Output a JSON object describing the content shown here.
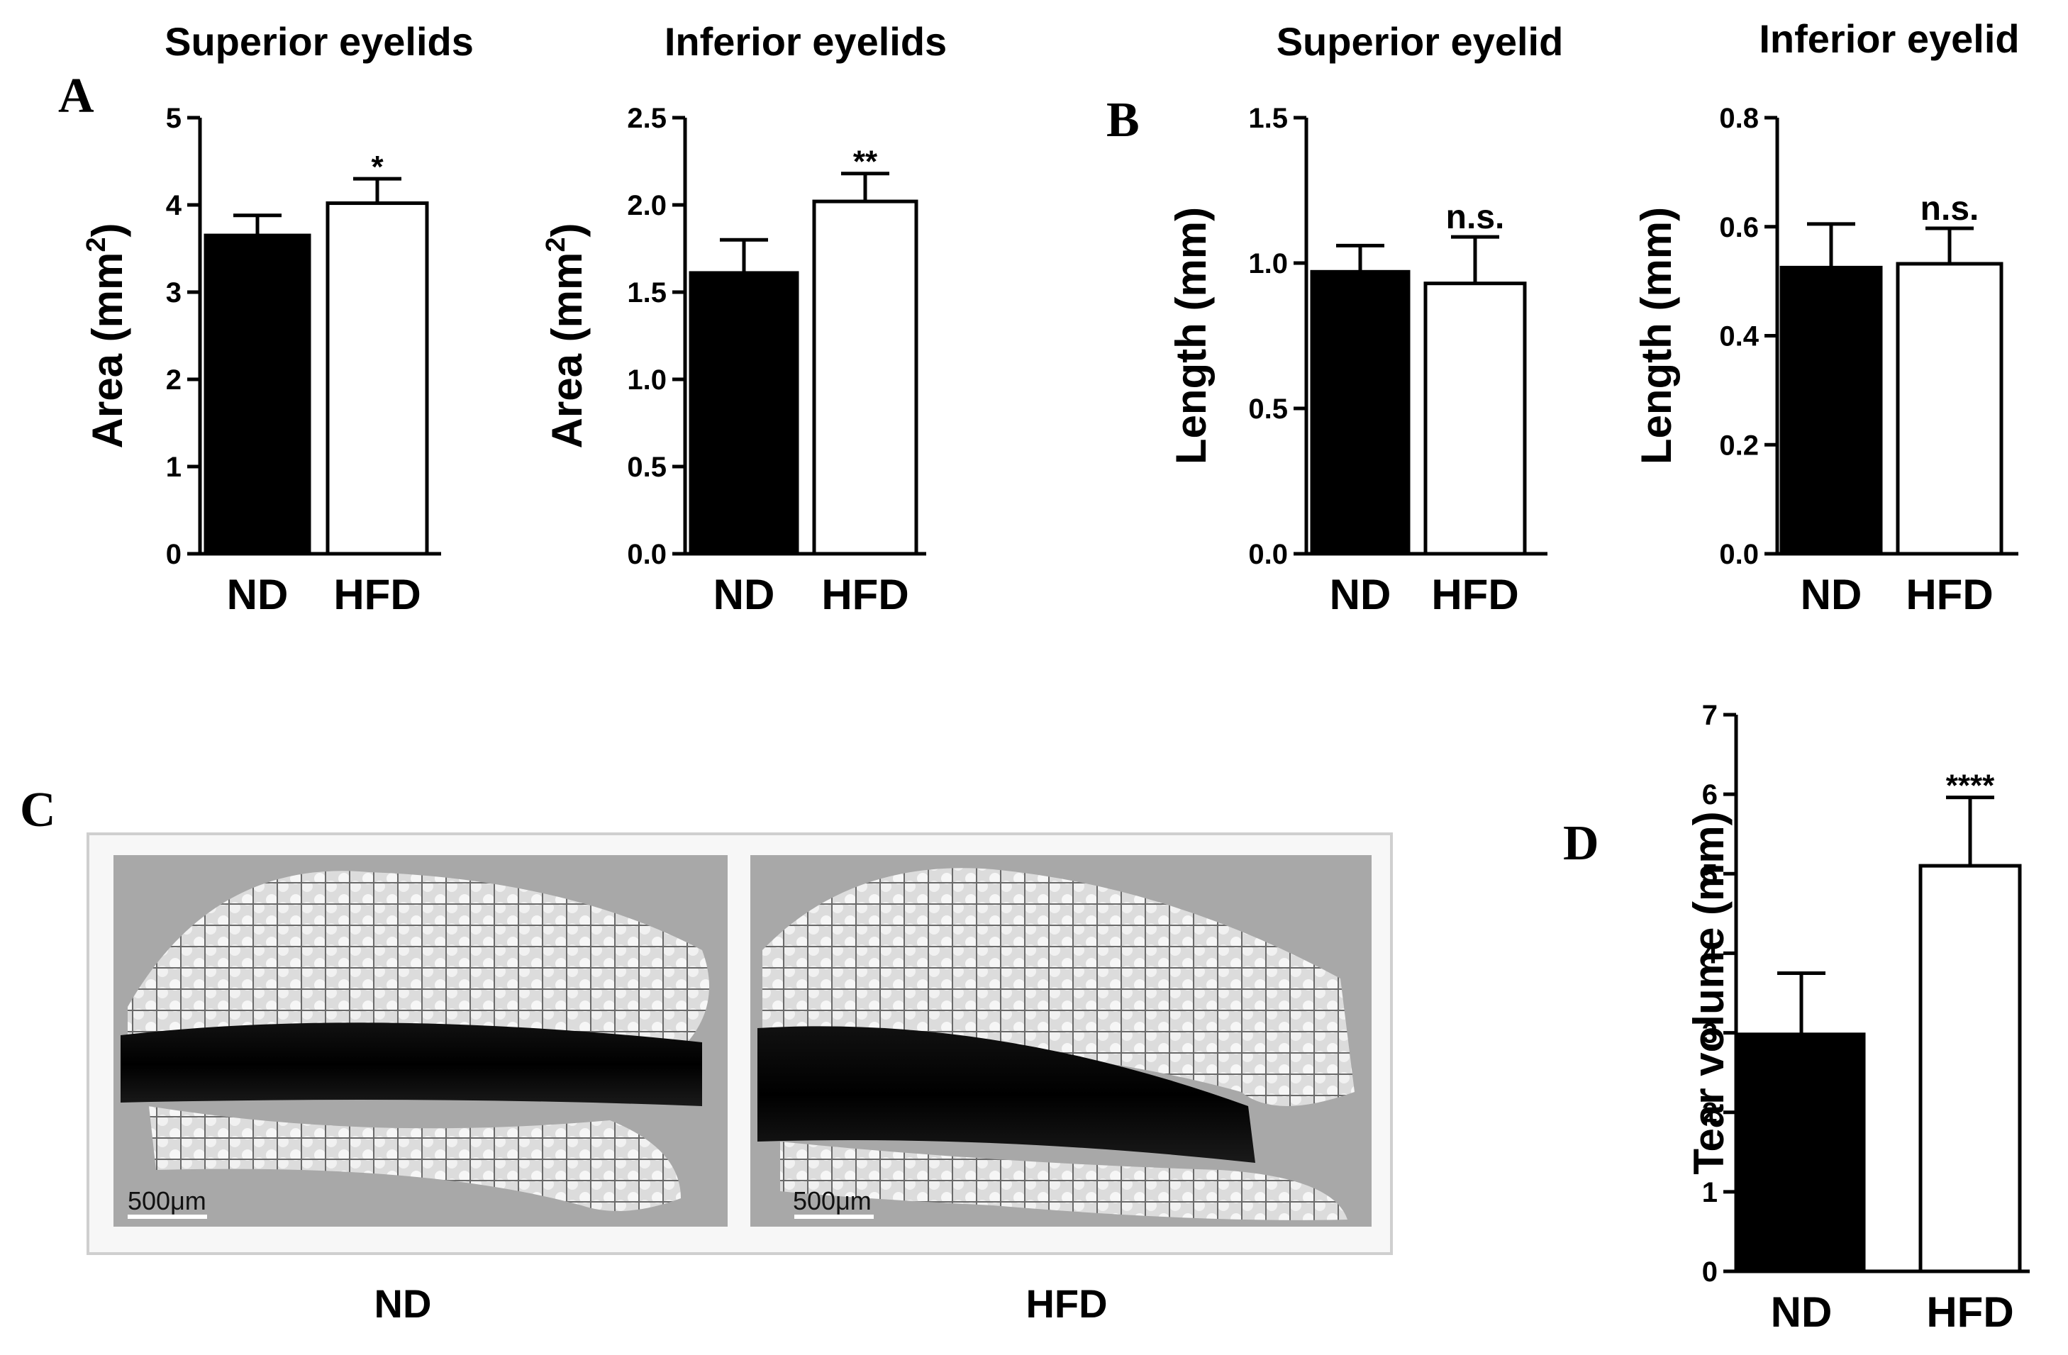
{
  "panels": {
    "A": "A",
    "B": "B",
    "C": "C",
    "D": "D"
  },
  "colors": {
    "nd_fill": "#000000",
    "hfd_fill": "#ffffff",
    "axis": "#000000",
    "frame": "#d4d4d4"
  },
  "images": {
    "labels": [
      "ND",
      "HFD"
    ],
    "scale_bar": "500μm",
    "description_icons": [
      "meibomian-gland-nd-image",
      "meibomian-gland-hfd-image"
    ]
  },
  "chart_data": [
    {
      "type": "bar",
      "panel": "A",
      "title": "Superior eyelids",
      "ylabel": "Area (mm2)",
      "ylim": [
        0,
        5
      ],
      "yticks": [
        "0",
        "1",
        "2",
        "3",
        "4",
        "5"
      ],
      "categories": [
        "ND",
        "HFD"
      ],
      "values": [
        3.65,
        4.02
      ],
      "errors": [
        0.23,
        0.28
      ],
      "significance": [
        "",
        "*"
      ]
    },
    {
      "type": "bar",
      "panel": "A",
      "title": "Inferior eyelids",
      "ylabel": "Area (mm2)",
      "ylim": [
        0,
        2.5
      ],
      "yticks": [
        "0.0",
        "0.5",
        "1.0",
        "1.5",
        "2.0",
        "2.5"
      ],
      "categories": [
        "ND",
        "HFD"
      ],
      "values": [
        1.61,
        2.02
      ],
      "errors": [
        0.19,
        0.16
      ],
      "significance": [
        "",
        "**"
      ]
    },
    {
      "type": "bar",
      "panel": "B",
      "title": "Superior eyelid",
      "ylabel": "Length (mm)",
      "ylim": [
        0,
        1.5
      ],
      "yticks": [
        "0.0",
        "0.5",
        "1.0",
        "1.5"
      ],
      "categories": [
        "ND",
        "HFD"
      ],
      "values": [
        0.97,
        0.93
      ],
      "errors": [
        0.09,
        0.16
      ],
      "significance": [
        "",
        "n.s."
      ]
    },
    {
      "type": "bar",
      "panel": "B",
      "title": "Inferior eyelid",
      "ylabel": "Length (mm)",
      "ylim": [
        0,
        0.8
      ],
      "yticks": [
        "0.0",
        "0.2",
        "0.4",
        "0.6",
        "0.8"
      ],
      "categories": [
        "ND",
        "HFD"
      ],
      "values": [
        0.525,
        0.532
      ],
      "errors": [
        0.08,
        0.065
      ],
      "significance": [
        "",
        "n.s."
      ]
    },
    {
      "type": "bar",
      "panel": "D",
      "title": "",
      "ylabel": "Tear volume (mm)",
      "ylim": [
        0,
        7
      ],
      "yticks": [
        "0",
        "1",
        "2",
        "3",
        "4",
        "5",
        "6",
        "7"
      ],
      "categories": [
        "ND",
        "HFD"
      ],
      "values": [
        2.98,
        5.1
      ],
      "errors": [
        0.77,
        0.86
      ],
      "significance": [
        "",
        "****"
      ]
    }
  ]
}
